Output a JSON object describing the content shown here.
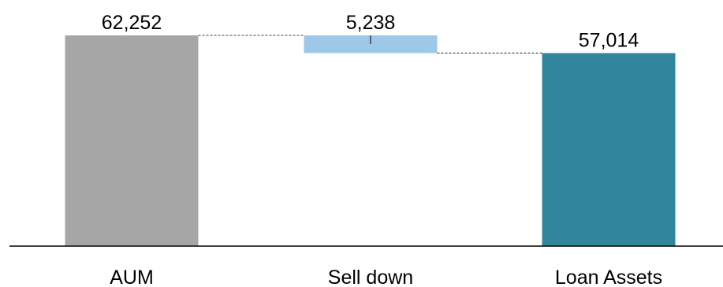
{
  "chart_data": {
    "type": "bar",
    "subtype": "waterfall",
    "title": "",
    "xlabel": "",
    "ylabel": "",
    "categories": [
      "AUM",
      "Sell down",
      "Loan Assets"
    ],
    "values": [
      62252,
      -5238,
      57014
    ],
    "value_labels": [
      "62,252",
      "5,238",
      "57,014"
    ],
    "bar_kinds": [
      "total",
      "decrease",
      "total"
    ],
    "colors": [
      "#a6a6a6",
      "#9dc8e8",
      "#31859c"
    ],
    "connector_style": "dashed",
    "axis_color": "#000000",
    "ylim": [
      0,
      62252
    ],
    "grid": false,
    "legend": "none"
  }
}
